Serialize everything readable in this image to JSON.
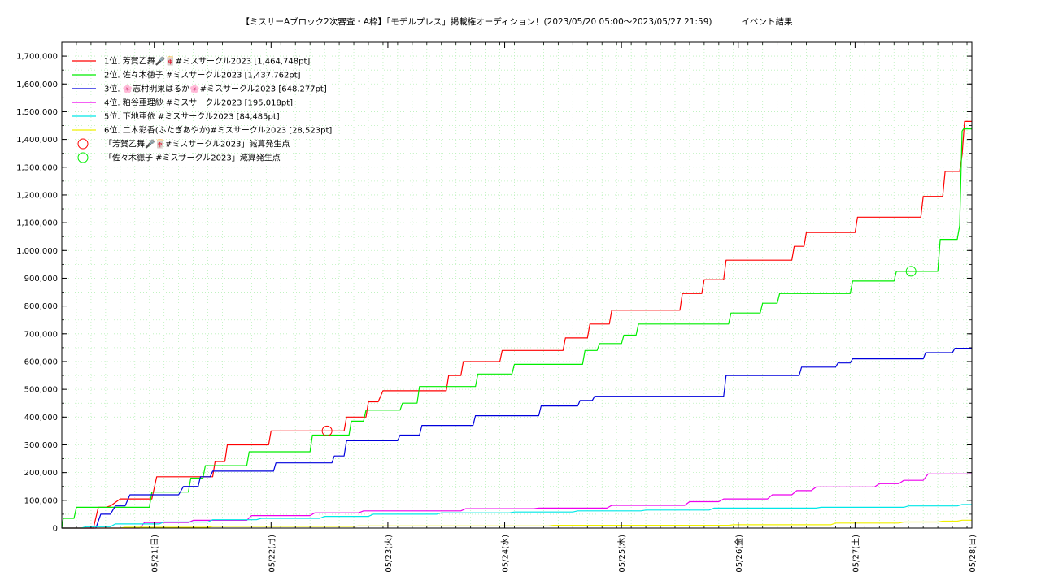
{
  "chart_data": {
    "type": "line",
    "title": "【ミスサーAブロック2次審査・A枠】「モデルプレス」掲載権オーディション！(2023/05/20 05:00〜2023/05/27 21:59)",
    "subtitle": "イベント結果",
    "xlabel": "",
    "ylabel": "",
    "x_range_hours": [
      0,
      187
    ],
    "xlim": [
      "2023/05/20 05:00",
      "2023/05/28 00:00"
    ],
    "ylim": [
      0,
      1750000
    ],
    "y_ticks": [
      0,
      100000,
      200000,
      300000,
      400000,
      500000,
      600000,
      700000,
      800000,
      900000,
      1000000,
      1100000,
      1200000,
      1300000,
      1400000,
      1500000,
      1600000,
      1700000
    ],
    "y_tick_labels": [
      "0",
      "100,000",
      "200,000",
      "300,000",
      "400,000",
      "500,000",
      "600,000",
      "700,000",
      "800,000",
      "900,000",
      "1,000,000",
      "1,100,000",
      "1,200,000",
      "1,300,000",
      "1,400,000",
      "1,500,000",
      "1,600,000",
      "1,700,000"
    ],
    "x_ticks": [
      {
        "x": 19,
        "label": "05/21(日)"
      },
      {
        "x": 43,
        "label": "05/22(月)"
      },
      {
        "x": 67,
        "label": "05/23(火)"
      },
      {
        "x": 91,
        "label": "05/24(水)"
      },
      {
        "x": 115,
        "label": "05/25(木)"
      },
      {
        "x": 139,
        "label": "05/26(金)"
      },
      {
        "x": 163,
        "label": "05/27(土)"
      },
      {
        "x": 187,
        "label": "05/28(日)"
      }
    ],
    "grid": true,
    "legend_position": "top-left",
    "series": [
      {
        "name": "1位. 芳賀乙舞🎤🀄#ミスサークル2023 [1,464,748pt]",
        "color": "#ff0000",
        "points": [
          [
            0,
            0
          ],
          [
            6.5,
            0
          ],
          [
            7.5,
            75000
          ],
          [
            9,
            75000
          ],
          [
            10,
            80000
          ],
          [
            12,
            105000
          ],
          [
            18.5,
            105000
          ],
          [
            19.5,
            185000
          ],
          [
            31,
            185000
          ],
          [
            31.5,
            240000
          ],
          [
            33.5,
            240000
          ],
          [
            34,
            300000
          ],
          [
            42.5,
            300000
          ],
          [
            43,
            350000
          ],
          [
            58,
            350000
          ],
          [
            58.5,
            400000
          ],
          [
            62.5,
            400000
          ],
          [
            63,
            455000
          ],
          [
            65,
            455000
          ],
          [
            66,
            495000
          ],
          [
            79,
            495000
          ],
          [
            79.5,
            550000
          ],
          [
            82,
            550000
          ],
          [
            82.5,
            600000
          ],
          [
            90,
            600000
          ],
          [
            90.5,
            640000
          ],
          [
            103,
            640000
          ],
          [
            103.5,
            685000
          ],
          [
            108,
            685000
          ],
          [
            108.5,
            735000
          ],
          [
            112.5,
            735000
          ],
          [
            113,
            785000
          ],
          [
            127,
            785000
          ],
          [
            127.5,
            845000
          ],
          [
            131.5,
            845000
          ],
          [
            132,
            895000
          ],
          [
            136,
            895000
          ],
          [
            136.5,
            965000
          ],
          [
            150,
            965000
          ],
          [
            150.5,
            1015000
          ],
          [
            152.5,
            1015000
          ],
          [
            153,
            1065000
          ],
          [
            163,
            1065000
          ],
          [
            163.5,
            1120000
          ],
          [
            176.5,
            1120000
          ],
          [
            177,
            1195000
          ],
          [
            181,
            1195000
          ],
          [
            181.5,
            1285000
          ],
          [
            184.5,
            1285000
          ],
          [
            185,
            1345000
          ],
          [
            185.5,
            1465000
          ],
          [
            187,
            1465000
          ]
        ]
      },
      {
        "name": "2位. 佐々木徳子 #ミスサークル2023 [1,437,762pt]",
        "color": "#00ee00",
        "points": [
          [
            0,
            0
          ],
          [
            0.3,
            35000
          ],
          [
            2.5,
            35000
          ],
          [
            3,
            75000
          ],
          [
            18,
            75000
          ],
          [
            18.5,
            130000
          ],
          [
            26,
            130000
          ],
          [
            26.5,
            180000
          ],
          [
            29,
            180000
          ],
          [
            29.5,
            225000
          ],
          [
            38,
            225000
          ],
          [
            38.5,
            275000
          ],
          [
            51,
            275000
          ],
          [
            51.5,
            335000
          ],
          [
            59,
            335000
          ],
          [
            59.5,
            385000
          ],
          [
            62,
            385000
          ],
          [
            62.5,
            425000
          ],
          [
            69.5,
            425000
          ],
          [
            70,
            450000
          ],
          [
            73,
            450000
          ],
          [
            73.5,
            510000
          ],
          [
            85,
            510000
          ],
          [
            85.5,
            555000
          ],
          [
            92.5,
            555000
          ],
          [
            93,
            590000
          ],
          [
            107,
            590000
          ],
          [
            107.5,
            640000
          ],
          [
            110,
            640000
          ],
          [
            110.5,
            665000
          ],
          [
            115,
            665000
          ],
          [
            115.5,
            695000
          ],
          [
            118,
            695000
          ],
          [
            118.5,
            735000
          ],
          [
            137,
            735000
          ],
          [
            137.5,
            775000
          ],
          [
            143.5,
            775000
          ],
          [
            144,
            810000
          ],
          [
            147,
            810000
          ],
          [
            147.5,
            845000
          ],
          [
            162,
            845000
          ],
          [
            162.5,
            890000
          ],
          [
            171,
            890000
          ],
          [
            171.5,
            925000
          ],
          [
            180,
            925000
          ],
          [
            180.5,
            1040000
          ],
          [
            184,
            1040000
          ],
          [
            184.5,
            1090000
          ],
          [
            185,
            1430000
          ],
          [
            185.3,
            1438000
          ],
          [
            187,
            1438000
          ]
        ]
      },
      {
        "name": "3位. 🌸志村明果はるか🌸#ミスサークル2023 [648,277pt]",
        "color": "#0000dd",
        "points": [
          [
            0,
            0
          ],
          [
            7,
            0
          ],
          [
            8,
            50000
          ],
          [
            10,
            50000
          ],
          [
            11,
            80000
          ],
          [
            13,
            80000
          ],
          [
            14,
            120000
          ],
          [
            24,
            120000
          ],
          [
            25,
            150000
          ],
          [
            28,
            150000
          ],
          [
            28.5,
            185000
          ],
          [
            30.5,
            185000
          ],
          [
            31,
            205000
          ],
          [
            43.5,
            205000
          ],
          [
            44,
            235000
          ],
          [
            55.5,
            235000
          ],
          [
            56,
            260000
          ],
          [
            58,
            260000
          ],
          [
            58.5,
            315000
          ],
          [
            69,
            315000
          ],
          [
            69.5,
            335000
          ],
          [
            73.5,
            335000
          ],
          [
            74,
            370000
          ],
          [
            84.5,
            370000
          ],
          [
            85,
            405000
          ],
          [
            98,
            405000
          ],
          [
            98.5,
            440000
          ],
          [
            106,
            440000
          ],
          [
            106.5,
            460000
          ],
          [
            109,
            460000
          ],
          [
            109.5,
            475000
          ],
          [
            136,
            475000
          ],
          [
            136.5,
            550000
          ],
          [
            151.5,
            550000
          ],
          [
            152,
            580000
          ],
          [
            159,
            580000
          ],
          [
            159.5,
            595000
          ],
          [
            162,
            595000
          ],
          [
            162.5,
            610000
          ],
          [
            177,
            610000
          ],
          [
            177.5,
            632000
          ],
          [
            183,
            632000
          ],
          [
            183.5,
            648000
          ],
          [
            187,
            648000
          ]
        ]
      },
      {
        "name": "4位. 粕谷亜理紗 #ミスサークル2023 [195,018pt]",
        "color": "#ee00ee",
        "points": [
          [
            0,
            0
          ],
          [
            16,
            0
          ],
          [
            17,
            20000
          ],
          [
            26,
            20000
          ],
          [
            27,
            28000
          ],
          [
            38,
            28000
          ],
          [
            39,
            45000
          ],
          [
            51,
            45000
          ],
          [
            52,
            55000
          ],
          [
            61,
            55000
          ],
          [
            62,
            62000
          ],
          [
            82,
            62000
          ],
          [
            83,
            70000
          ],
          [
            97,
            70000
          ],
          [
            98,
            72000
          ],
          [
            112,
            72000
          ],
          [
            113,
            82000
          ],
          [
            128,
            82000
          ],
          [
            129,
            95000
          ],
          [
            135,
            95000
          ],
          [
            136,
            105000
          ],
          [
            145,
            105000
          ],
          [
            146,
            120000
          ],
          [
            150,
            120000
          ],
          [
            151,
            135000
          ],
          [
            154,
            135000
          ],
          [
            155,
            148000
          ],
          [
            167,
            148000
          ],
          [
            168,
            160000
          ],
          [
            172,
            160000
          ],
          [
            173,
            172000
          ],
          [
            177,
            172000
          ],
          [
            178,
            195000
          ],
          [
            187,
            195000
          ]
        ]
      },
      {
        "name": "5位. 下地亜依 #ミスサークル2023 [84,485pt]",
        "color": "#00e8e8",
        "points": [
          [
            0,
            0
          ],
          [
            4,
            0
          ],
          [
            5,
            5000
          ],
          [
            10,
            5000
          ],
          [
            11,
            15000
          ],
          [
            20,
            15000
          ],
          [
            21,
            22000
          ],
          [
            30,
            22000
          ],
          [
            31,
            30000
          ],
          [
            40,
            30000
          ],
          [
            41,
            35000
          ],
          [
            53,
            35000
          ],
          [
            54,
            42000
          ],
          [
            63,
            42000
          ],
          [
            64,
            50000
          ],
          [
            77,
            50000
          ],
          [
            78,
            55000
          ],
          [
            92,
            55000
          ],
          [
            93,
            58000
          ],
          [
            105,
            58000
          ],
          [
            106,
            62000
          ],
          [
            119,
            62000
          ],
          [
            120,
            65000
          ],
          [
            133,
            65000
          ],
          [
            134,
            72000
          ],
          [
            155,
            72000
          ],
          [
            156,
            75000
          ],
          [
            173,
            75000
          ],
          [
            174,
            80000
          ],
          [
            184,
            80000
          ],
          [
            185,
            85000
          ],
          [
            187,
            85000
          ]
        ]
      },
      {
        "name": "6位. 二木彩香(ふたぎあやか)#ミスサークル2023 [28,523pt]",
        "color": "#f0f000",
        "points": [
          [
            0,
            0
          ],
          [
            12,
            0
          ],
          [
            13,
            3000
          ],
          [
            30,
            3000
          ],
          [
            31,
            6000
          ],
          [
            60,
            6000
          ],
          [
            61,
            8000
          ],
          [
            100,
            8000
          ],
          [
            101,
            10000
          ],
          [
            137,
            10000
          ],
          [
            138,
            12000
          ],
          [
            158,
            12000
          ],
          [
            159,
            18000
          ],
          [
            172,
            18000
          ],
          [
            173,
            22000
          ],
          [
            180,
            22000
          ],
          [
            181,
            25000
          ],
          [
            184,
            25000
          ],
          [
            185,
            28500
          ],
          [
            187,
            28500
          ]
        ]
      }
    ],
    "annotations": [
      {
        "name": "「芳賀乙舞🎤🀄#ミスサークル2023」減算発生点",
        "color": "#ff0000",
        "x": 54.5,
        "y": 350000
      },
      {
        "name": "「佐々木徳子 #ミスサークル2023」減算発生点",
        "color": "#00ee00",
        "x": 174.5,
        "y": 925000
      }
    ]
  }
}
